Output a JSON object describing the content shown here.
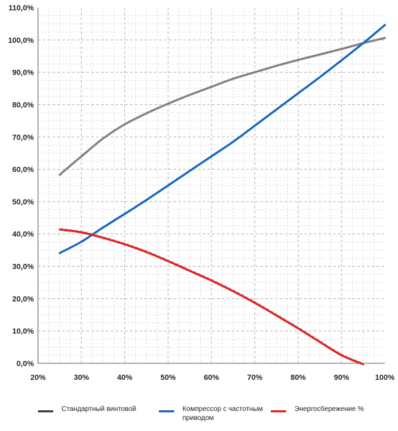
{
  "chart_data": {
    "type": "line",
    "x_ticks": [
      "20%",
      "30%",
      "40%",
      "50%",
      "60%",
      "70%",
      "80%",
      "90%",
      "100%"
    ],
    "y_ticks": [
      "0,0%",
      "10,0%",
      "20,0%",
      "30,0%",
      "40,0%",
      "50,0%",
      "60,0%",
      "70,0%",
      "80,0%",
      "90,0%",
      "100,0%",
      "110,0%"
    ],
    "xlim": [
      20,
      100
    ],
    "ylim": [
      0,
      110
    ],
    "grid": true,
    "legend_position": "bottom",
    "series": [
      {
        "name": "Стандартный винтовой",
        "color": "#808080",
        "x": [
          25,
          30,
          35,
          40,
          45,
          50,
          55,
          60,
          65,
          70,
          75,
          80,
          85,
          90,
          95,
          100
        ],
        "values": [
          58.3,
          64.0,
          69.5,
          73.9,
          77.3,
          80.3,
          83.0,
          85.5,
          88.0,
          90.0,
          92.0,
          93.8,
          95.5,
          97.2,
          99.0,
          100.6
        ]
      },
      {
        "name": "Компрессор с частотным приводом",
        "color": "#1565c0",
        "x": [
          25,
          30,
          35,
          40,
          45,
          50,
          55,
          60,
          65,
          70,
          75,
          80,
          85,
          90,
          95,
          100
        ],
        "values": [
          34.1,
          37.6,
          42.0,
          46.2,
          50.5,
          55.0,
          59.5,
          64.0,
          68.5,
          73.5,
          78.5,
          83.5,
          88.5,
          93.7,
          99.0,
          104.6
        ]
      },
      {
        "name": "Энергосбережение %",
        "color": "#e02020",
        "x": [
          25,
          30,
          35,
          40,
          45,
          50,
          55,
          60,
          65,
          70,
          75,
          80,
          85,
          90,
          95
        ],
        "values": [
          41.4,
          40.5,
          38.8,
          36.8,
          34.4,
          31.6,
          28.6,
          25.6,
          22.3,
          18.7,
          14.8,
          10.8,
          6.6,
          2.5,
          -0.3
        ]
      }
    ]
  }
}
